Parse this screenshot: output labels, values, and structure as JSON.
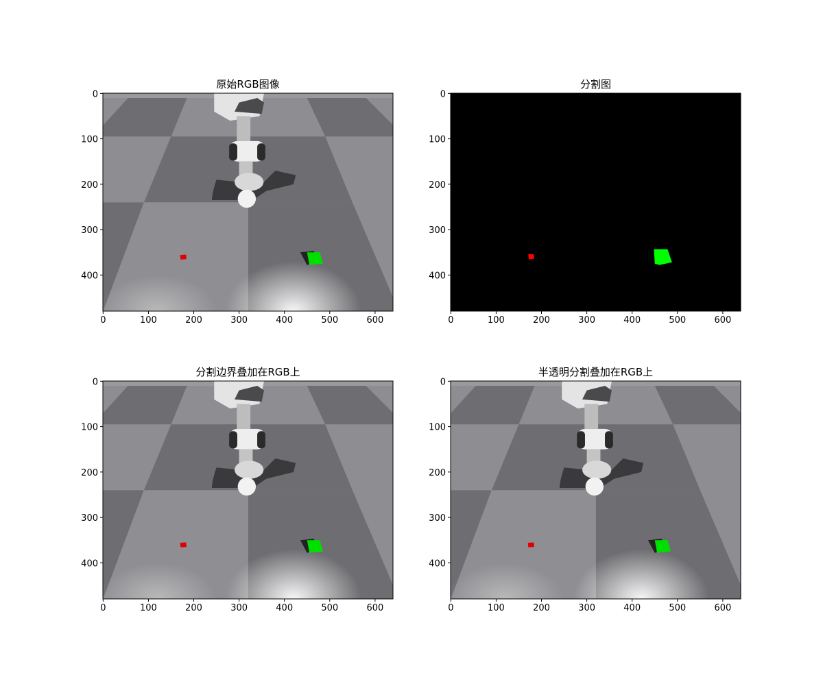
{
  "chart_data": [
    {
      "type": "image",
      "title": "原始RGB图像",
      "xlim": [
        -0.5,
        639.5
      ],
      "ylim": [
        479.5,
        -0.5
      ],
      "xticks": [
        0,
        100,
        200,
        300,
        400,
        500,
        600
      ],
      "yticks": [
        0,
        100,
        200,
        300,
        400
      ],
      "image": "rgb"
    },
    {
      "type": "image",
      "title": "分割图",
      "xlim": [
        -0.5,
        639.5
      ],
      "ylim": [
        479.5,
        -0.5
      ],
      "xticks": [
        0,
        100,
        200,
        300,
        400,
        500,
        600
      ],
      "yticks": [
        0,
        100,
        200,
        300,
        400
      ],
      "image": "segmentation"
    },
    {
      "type": "image",
      "title": "分割边界叠加在RGB上",
      "xlim": [
        -0.5,
        639.5
      ],
      "ylim": [
        479.5,
        -0.5
      ],
      "xticks": [
        0,
        100,
        200,
        300,
        400,
        500,
        600
      ],
      "yticks": [
        0,
        100,
        200,
        300,
        400
      ],
      "image": "rgb"
    },
    {
      "type": "image",
      "title": "半透明分割叠加在RGB上",
      "xlim": [
        -0.5,
        639.5
      ],
      "ylim": [
        479.5,
        -0.5
      ],
      "xticks": [
        0,
        100,
        200,
        300,
        400,
        500,
        600
      ],
      "yticks": [
        0,
        100,
        200,
        300,
        400
      ],
      "image": "rgb"
    }
  ]
}
